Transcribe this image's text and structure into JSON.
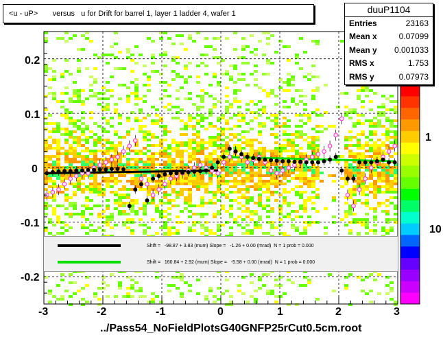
{
  "chart_data": {
    "type": "scatter",
    "title": "<u - uP>       versus   u for Drift for barrel 1, layer 1 ladder 4, wafer 1",
    "xlabel": "",
    "ylabel": "",
    "xlim": [
      -3,
      3
    ],
    "ylim": [
      -0.25,
      0.25
    ],
    "x_ticks": [
      "-3",
      "-2",
      "-1",
      "0",
      "1",
      "2",
      "3"
    ],
    "y_ticks": [
      "0.2",
      "0.1",
      "0",
      "-0.1",
      "-0.2"
    ],
    "z_ticks": [
      "1",
      "10"
    ],
    "grid": true,
    "stats": {
      "name": "duuP1104",
      "rows": [
        {
          "key": "Entries",
          "value": "23163"
        },
        {
          "key": "Mean x",
          "value": "0.07099"
        },
        {
          "key": "Mean y",
          "value": "0.001033"
        },
        {
          "key": "RMS x",
          "value": "1.753"
        },
        {
          "key": "RMS y",
          "value": "0.07973"
        }
      ]
    },
    "legend": [
      {
        "color": "#000000",
        "text": "Shift =   -98.87 + 3.83 (mum) Slope =   -1.26 + 0.00 (mrad)  N = 1 prob = 0.000"
      },
      {
        "color": "#00dd00",
        "text": "Shift =   160.84 + 2.92 (mum) Slope =   -5.58 + 0.00 (mrad)  N = 1 prob = 0.000"
      }
    ],
    "series": [
      {
        "name": "profile (black)",
        "x": [
          -2.95,
          -2.85,
          -2.75,
          -2.65,
          -2.55,
          -2.45,
          -2.35,
          -2.25,
          -2.15,
          -2.05,
          -1.95,
          -1.85,
          -1.75,
          -1.65,
          -1.55,
          -1.45,
          -1.35,
          -1.25,
          -1.15,
          -1.05,
          -0.95,
          -0.85,
          -0.75,
          -0.65,
          -0.55,
          -0.45,
          -0.35,
          -0.25,
          -0.15,
          -0.05,
          0.05,
          0.15,
          0.25,
          0.35,
          0.45,
          0.55,
          0.65,
          0.75,
          0.85,
          0.95,
          1.05,
          1.15,
          1.25,
          1.35,
          1.45,
          1.55,
          1.65,
          1.75,
          1.85,
          1.95,
          2.05,
          2.15,
          2.25,
          2.35,
          2.45,
          2.55,
          2.65,
          2.75,
          2.85,
          2.95
        ],
        "y": [
          -0.01,
          -0.008,
          -0.007,
          -0.006,
          -0.006,
          -0.005,
          -0.005,
          -0.004,
          -0.004,
          -0.003,
          -0.003,
          -0.002,
          -0.002,
          -0.003,
          -0.07,
          -0.04,
          -0.03,
          -0.06,
          -0.02,
          -0.015,
          -0.012,
          -0.01,
          -0.01,
          -0.009,
          -0.008,
          -0.007,
          -0.006,
          -0.005,
          0.0,
          0.01,
          0.02,
          0.035,
          0.03,
          0.025,
          0.02,
          0.018,
          0.016,
          0.015,
          0.014,
          0.013,
          0.012,
          0.012,
          0.011,
          0.011,
          0.01,
          0.01,
          0.01,
          0.012,
          0.015,
          0.02,
          -0.005,
          -0.02,
          -0.02,
          0.01,
          0.01,
          0.01,
          0.012,
          0.015,
          0.01,
          0.01
        ]
      },
      {
        "name": "fit (pink)",
        "x": [
          -2.95,
          -2.85,
          -2.75,
          -2.65,
          -2.55,
          -2.45,
          -2.35,
          -2.25,
          -2.15,
          -2.05,
          -1.95,
          -1.85,
          -1.75,
          -1.65,
          -1.55,
          -1.45,
          -1.35,
          -1.25,
          -1.15,
          -1.05,
          -0.95,
          -0.85,
          -0.75,
          -0.65,
          -0.55,
          -0.45,
          -0.35,
          -0.25,
          -0.15,
          -0.05,
          0.05,
          0.15,
          0.25,
          0.35,
          0.45,
          0.55,
          0.65,
          0.75,
          0.85,
          0.95,
          1.05,
          1.15,
          1.25,
          1.35,
          1.45,
          1.55,
          1.65,
          1.75,
          1.85,
          1.95,
          2.05,
          2.15,
          2.25,
          2.35,
          2.45,
          2.55,
          2.65,
          2.75,
          2.85,
          2.95
        ],
        "y": [
          -0.05,
          -0.045,
          -0.04,
          -0.03,
          -0.02,
          -0.015,
          -0.01,
          -0.01,
          0.0,
          0.005,
          0.01,
          0.015,
          0.02,
          0.03,
          0.04,
          0.05,
          -0.02,
          -0.03,
          -0.05,
          -0.04,
          -0.03,
          -0.02,
          -0.015,
          -0.01,
          -0.005,
          0.0,
          0.005,
          0.0,
          -0.005,
          -0.01,
          0.01,
          0.02,
          0.03,
          0.02,
          0.01,
          0.015,
          0.02,
          0.01,
          -0.005,
          -0.01,
          -0.005,
          0.0,
          0.005,
          0.01,
          0.015,
          0.02,
          0.025,
          0.03,
          0.04,
          0.06,
          0.09,
          -0.05,
          -0.07,
          -0.04,
          -0.02,
          0.0,
          0.01,
          0.02,
          0.03,
          0.04
        ]
      }
    ]
  }
}
